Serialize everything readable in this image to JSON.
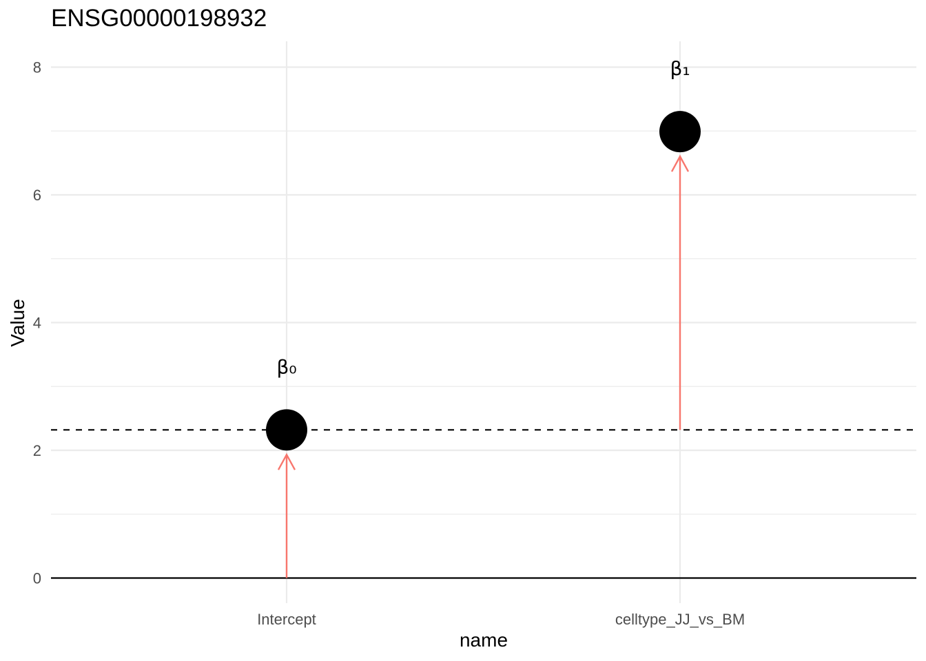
{
  "chart_data": {
    "type": "scatter",
    "title": "ENSG00000198932",
    "xlabel": "name",
    "ylabel": "Value",
    "categories": [
      "Intercept",
      "celltype_JJ_vs_BM"
    ],
    "values": [
      2.32,
      6.99
    ],
    "point_labels": [
      "β₀",
      "β₁"
    ],
    "ylim": [
      -0.75,
      8.4
    ],
    "yticks": [
      0,
      2,
      4,
      6,
      8
    ],
    "reference_line": {
      "value": 2.32,
      "style": "dashed"
    },
    "arrows": [
      {
        "category": "Intercept",
        "from": 0,
        "to": 2.32
      },
      {
        "category": "celltype_JJ_vs_BM",
        "from": 2.32,
        "to": 6.99
      }
    ],
    "zero_line": true,
    "grid": true,
    "legend": "none",
    "colors": {
      "arrow": "#F8766D",
      "point": "#000000",
      "grid": "#ebebeb"
    }
  }
}
